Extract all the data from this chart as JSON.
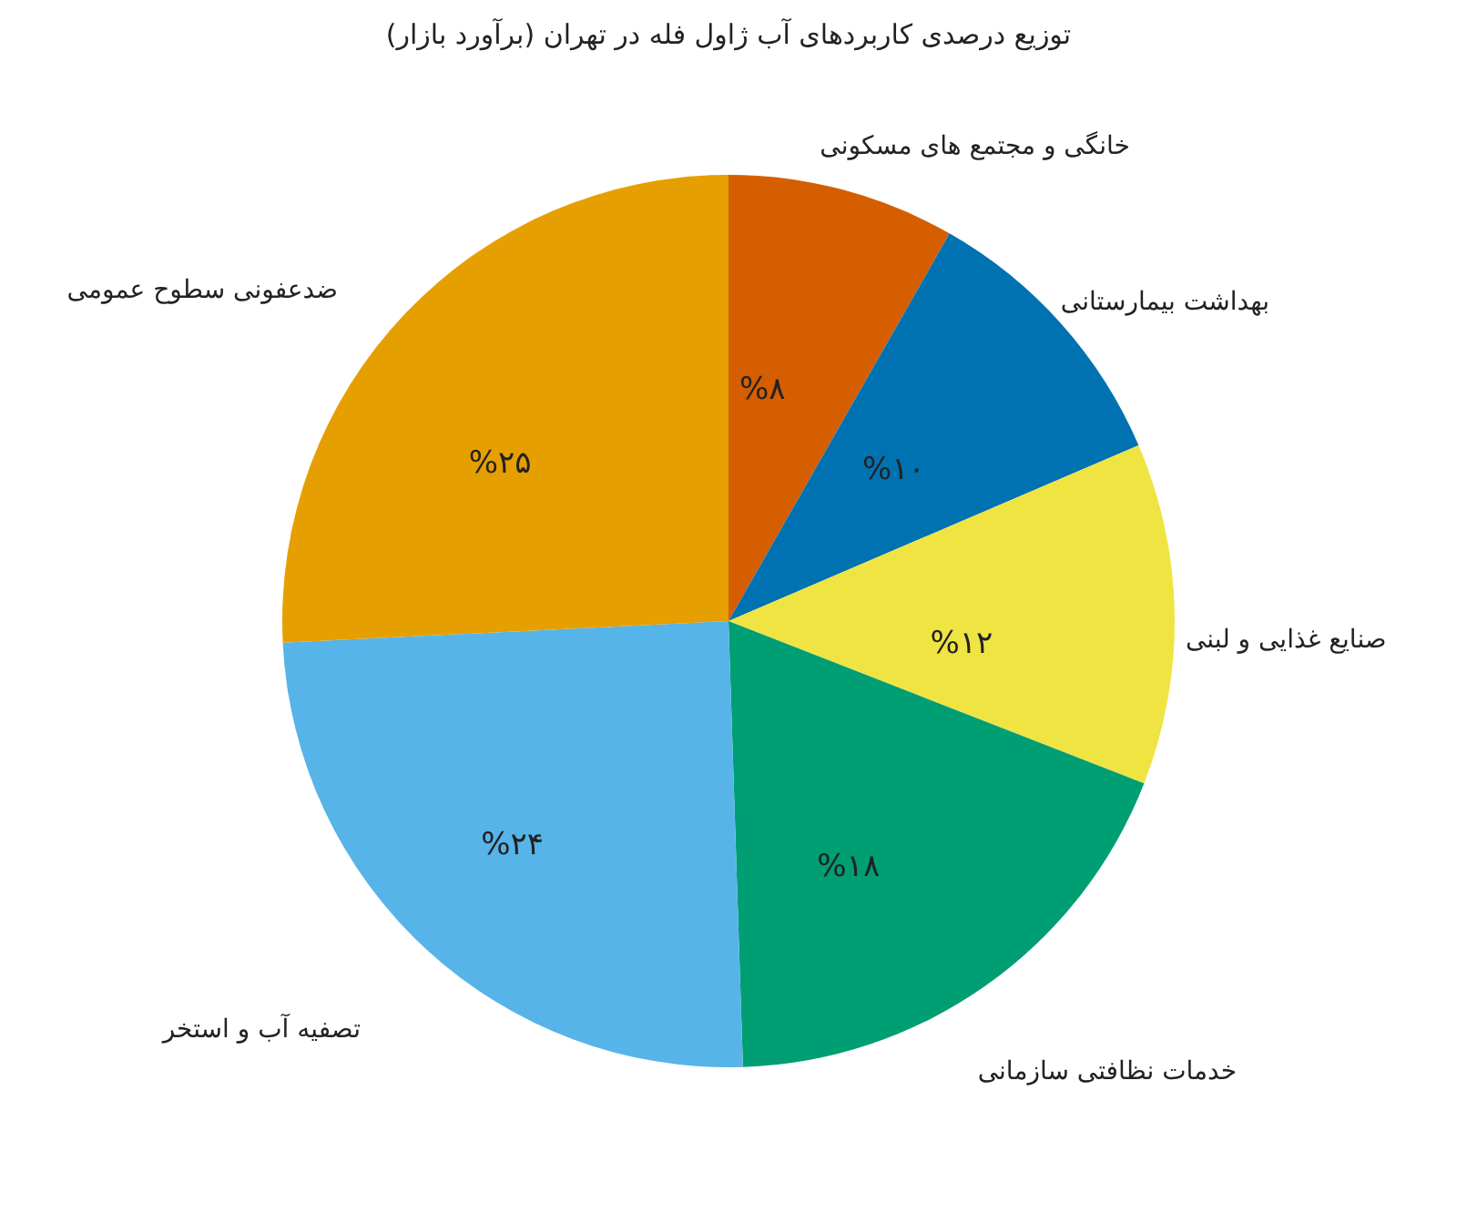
{
  "chart_data": {
    "type": "pie",
    "title": "توزیع درصدی کاربردهای آب ژاول فله در تهران (برآورد بازار)",
    "categories": [
      "خانگی و مجتمع های مسکونی",
      "بهداشت بیمارستانی",
      "صنایع غذایی و لبنی",
      "خدمات نظافتی سازمانی",
      "تصفیه آب و استخر",
      "ضدعفونی سطوح عمومی"
    ],
    "values": [
      8,
      10,
      12,
      18,
      24,
      25
    ],
    "colors": [
      "#d55e00",
      "#0072b2",
      "#f0e442",
      "#009e73",
      "#56b4e9",
      "#e69f00"
    ],
    "value_labels": [
      "%۸",
      "%۱۰",
      "%۱۲",
      "%۱۸",
      "%۲۴",
      "%۲۵"
    ],
    "legend": false
  }
}
